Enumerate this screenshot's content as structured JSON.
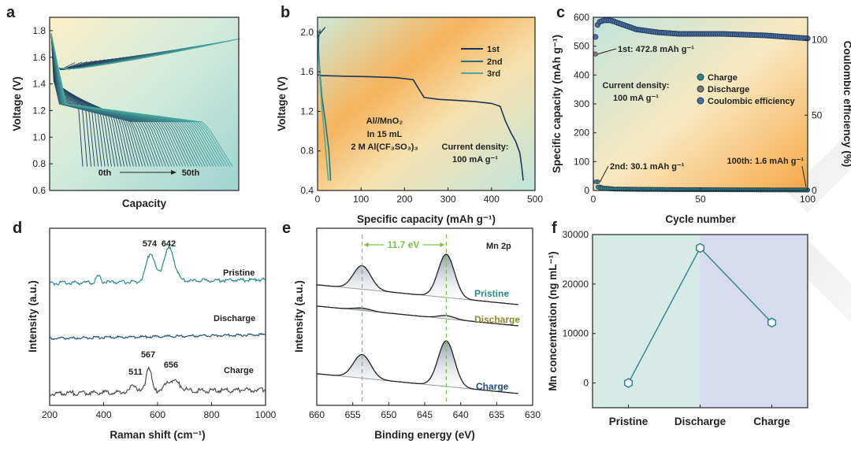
{
  "panels": [
    "a",
    "b",
    "c",
    "d",
    "e",
    "f"
  ],
  "colors": {
    "dark": "#1d3557",
    "teal": "#2a8a8a",
    "tealLight": "#4aa8a0",
    "gray": "#4a4a4a",
    "olive": "#8a8a2a",
    "navy": "#23507a",
    "hex": "#2f7f8c",
    "green": "#7cc04a"
  },
  "chart_data": [
    {
      "panel": "a",
      "type": "line",
      "xlabel": "Capacity",
      "ylabel": "Voltage (V)",
      "yticks": [
        "0.6",
        "0.8",
        "1.0",
        "1.2",
        "1.4",
        "1.6",
        "1.8"
      ],
      "ylim": [
        0.6,
        1.9
      ],
      "annotation": {
        "start": "0th",
        "end": "50th"
      },
      "cycles": 51
    },
    {
      "panel": "b",
      "type": "line",
      "xlabel": "Specific capacity (mAh g⁻¹)",
      "ylabel": "Voltage (V)",
      "xticks": [
        "0",
        "100",
        "200",
        "300",
        "400",
        "500"
      ],
      "yticks": [
        "0.4",
        "0.8",
        "1.2",
        "1.6",
        "2.0"
      ],
      "xlim": [
        0,
        500
      ],
      "ylim": [
        0.4,
        2.15
      ],
      "legend": [
        "1st",
        "2nd",
        "3rd"
      ],
      "series": [
        {
          "name": "1st",
          "x": [
            0,
            10,
            20,
            60,
            120,
            180,
            220,
            232,
            245,
            280,
            320,
            360,
            400,
            420,
            432,
            445,
            455,
            465,
            470,
            472.8
          ],
          "y": [
            1.57,
            1.56,
            1.56,
            1.555,
            1.55,
            1.54,
            1.52,
            1.43,
            1.34,
            1.32,
            1.31,
            1.3,
            1.28,
            1.25,
            1.1,
            0.98,
            0.9,
            0.78,
            0.62,
            0.5
          ]
        },
        {
          "name": "2nd",
          "x": [
            0,
            5,
            10,
            18,
            26,
            30.1
          ],
          "y": [
            2.02,
            1.6,
            1.35,
            1.1,
            0.8,
            0.5
          ]
        },
        {
          "name": "3rd",
          "x": [
            0,
            5,
            10,
            15,
            20,
            25
          ],
          "y": [
            1.98,
            1.55,
            1.25,
            1.0,
            0.75,
            0.5
          ]
        }
      ],
      "text": {
        "cell_1": "Al//MnO₂",
        "cell_2": "In 15 mL",
        "cell_3": "2 M Al(CF₃SO₃)₃",
        "density_1": "Current density:",
        "density_2": "100 mA g⁻¹"
      }
    },
    {
      "panel": "c",
      "type": "scatter",
      "xlabel": "Cycle number",
      "ylabel": "Specific capacity (mAh g⁻¹)",
      "y2label": "Coulombic efficiency (%)",
      "xticks": [
        "0",
        "50",
        "100"
      ],
      "yticks": [
        "0",
        "100",
        "200",
        "300",
        "400",
        "500",
        "600"
      ],
      "y2ticks": [
        "0",
        "50",
        "100"
      ],
      "xlim": [
        0,
        100
      ],
      "ylim": [
        0,
        600
      ],
      "y2lim": [
        0,
        115
      ],
      "legend": [
        "Charge",
        "Discharge",
        "Coulombic efficiency"
      ],
      "annotations": {
        "first": "1st: 472.8 mAh g⁻¹",
        "second": "2nd: 30.1 mAh g⁻¹",
        "last": "100th: 1.6 mAh g⁻¹",
        "density_1": "Current density:",
        "density_2": "100 mA g⁻¹"
      },
      "series": [
        {
          "name": "Charge",
          "points": [
            [
              1,
              30
            ],
            [
              2,
              12
            ],
            [
              3,
              8
            ],
            [
              5,
              6
            ],
            [
              10,
              4
            ],
            [
              20,
              3
            ],
            [
              40,
              2.5
            ],
            [
              60,
              2
            ],
            [
              80,
              1.8
            ],
            [
              100,
              1.6
            ]
          ]
        },
        {
          "name": "Discharge",
          "points": [
            [
              1,
              472.8
            ],
            [
              2,
              30.1
            ],
            [
              3,
              12
            ],
            [
              5,
              8
            ],
            [
              10,
              5
            ],
            [
              20,
              4
            ],
            [
              40,
              3
            ],
            [
              60,
              2.5
            ],
            [
              80,
              2
            ],
            [
              100,
              1.6
            ]
          ]
        },
        {
          "name": "Coulombic efficiency",
          "points": [
            [
              1,
              102
            ],
            [
              2,
              110
            ],
            [
              3,
              112
            ],
            [
              5,
              113
            ],
            [
              8,
              113
            ],
            [
              12,
              111
            ],
            [
              20,
              107
            ],
            [
              30,
              105
            ],
            [
              40,
              104
            ],
            [
              60,
              104
            ],
            [
              80,
              103
            ],
            [
              100,
              101
            ]
          ]
        }
      ]
    },
    {
      "panel": "d",
      "type": "line",
      "xlabel": "Raman shift (cm⁻¹)",
      "ylabel": "Intensity (a.u.)",
      "xticks": [
        "200",
        "400",
        "600",
        "800",
        "1000"
      ],
      "xlim": [
        200,
        1000
      ],
      "series": [
        "Pristine",
        "Discharge",
        "Charge"
      ],
      "peaks": {
        "pristine": [
          "574",
          "642"
        ],
        "charge": [
          "511",
          "567",
          "656"
        ]
      }
    },
    {
      "panel": "e",
      "type": "line",
      "xlabel": "Binding energy (eV)",
      "ylabel": "Intensity (a.u.)",
      "xticks": [
        "660",
        "655",
        "650",
        "645",
        "640",
        "635",
        "630"
      ],
      "xlim": [
        660,
        630
      ],
      "series": [
        "Pristine",
        "Discharge",
        "Charge"
      ],
      "label": "Mn 2p",
      "splitting": "11.7 eV",
      "peaks_eV": [
        653.7,
        642.0
      ]
    },
    {
      "panel": "f",
      "type": "line",
      "xlabel": "",
      "ylabel": "Mn concentration (ng mL⁻¹)",
      "categories": [
        "Pristine",
        "Discharge",
        "Charge"
      ],
      "values": [
        0,
        27300,
        12200
      ],
      "yticks": [
        "0",
        "10000",
        "20000",
        "30000"
      ],
      "ylim": [
        -5000,
        30000
      ]
    }
  ]
}
